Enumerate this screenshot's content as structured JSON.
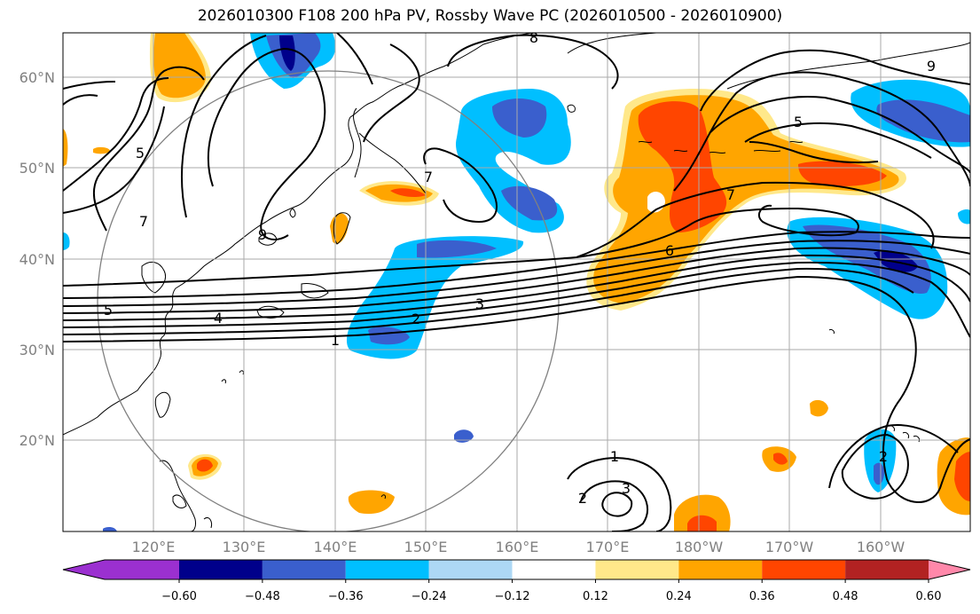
{
  "title": "2026010300 F108 200 hPa PV, Rossby Wave PC (2026010500 - 2026010900)",
  "axes": {
    "lon_ticks": [
      "120°E",
      "130°E",
      "140°E",
      "150°E",
      "160°E",
      "170°E",
      "180°W",
      "170°W",
      "160°W"
    ],
    "lat_ticks": [
      "60°N",
      "50°N",
      "40°N",
      "30°N",
      "20°N"
    ]
  },
  "contour_labels": [
    "8",
    "9",
    "5",
    "9",
    "7",
    "7",
    "5",
    "7",
    "6",
    "5",
    "4",
    "3",
    "2",
    "1",
    "1",
    "2",
    "3",
    "2"
  ],
  "colorbar": {
    "ticks": [
      "−0.60",
      "−0.48",
      "−0.36",
      "−0.24",
      "−0.12",
      "0.12",
      "0.24",
      "0.36",
      "0.48",
      "0.60"
    ],
    "colors": [
      "#9b30d0",
      "#00008b",
      "#3a5fcd",
      "#00bfff",
      "#add8f5",
      "#ffffff",
      "#ffe88a",
      "#ffa500",
      "#ff4500",
      "#b22222",
      "#ff88aa"
    ]
  },
  "colors": {
    "strong_negative": "#00008b",
    "negative": "#3a5fcd",
    "mild_negative": "#00bfff",
    "weak_negative": "#add8f5",
    "weak_positive": "#ffe88a",
    "positive": "#ffa500",
    "strong_positive": "#ff4500"
  }
}
